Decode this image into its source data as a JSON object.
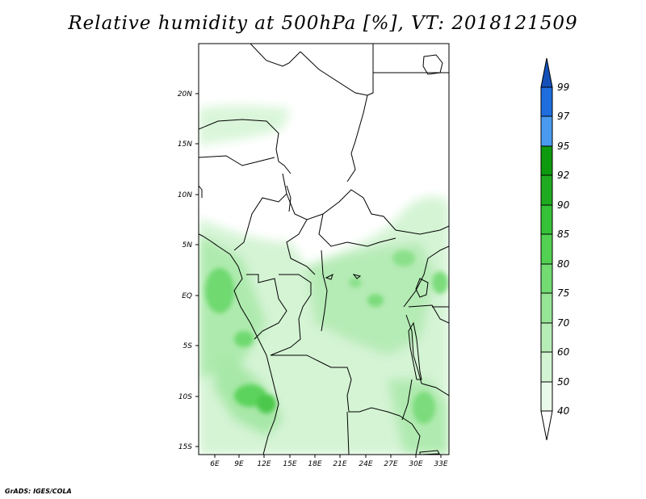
{
  "title": "Relative humidity at 500hPa [%], VT: 2018121509",
  "credit": "GrADS: IGES/COLA",
  "map": {
    "lat_labels": [
      "20N",
      "15N",
      "10N",
      "5N",
      "EQ",
      "5S",
      "10S",
      "15S"
    ],
    "lon_labels": [
      "6E",
      "9E",
      "12E",
      "15E",
      "18E",
      "21E",
      "24E",
      "27E",
      "30E",
      "33E"
    ]
  },
  "colorbar": {
    "levels": [
      "40",
      "50",
      "60",
      "70",
      "75",
      "80",
      "85",
      "90",
      "92",
      "95",
      "97",
      "99"
    ],
    "colors": [
      "#ffffff",
      "#e6f9e6",
      "#c6f2c6",
      "#a8eaa8",
      "#84e084",
      "#5ad65a",
      "#3cc83c",
      "#22b422",
      "#0ea00e",
      "#4a9bf0",
      "#1e6ee0",
      "#1450b8"
    ]
  }
}
